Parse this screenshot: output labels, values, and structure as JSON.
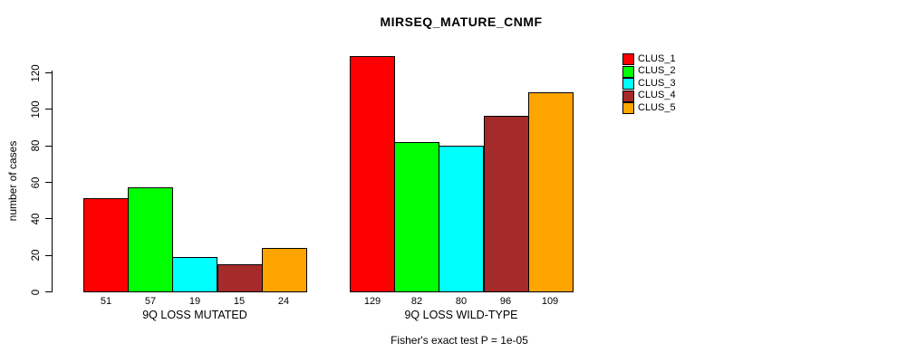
{
  "chart_data": {
    "type": "bar",
    "title": "MIRSEQ_MATURE_CNMF",
    "ylabel": "number of cases",
    "xlabel": "",
    "footer": "Fisher's exact test P = 1e-05",
    "ylim": [
      0,
      130
    ],
    "yticks": [
      0,
      20,
      40,
      60,
      80,
      100,
      120
    ],
    "grid": false,
    "bar_value_labels_shown": true,
    "legend_position": "right",
    "series": [
      {
        "name": "CLUS_1",
        "color": "#FF0000"
      },
      {
        "name": "CLUS_2",
        "color": "#00FF00"
      },
      {
        "name": "CLUS_3",
        "color": "#00FFFF"
      },
      {
        "name": "CLUS_4",
        "color": "#A52A2A"
      },
      {
        "name": "CLUS_5",
        "color": "#FFA500"
      }
    ],
    "groups": [
      {
        "label": "9Q LOSS MUTATED",
        "values": [
          51,
          57,
          19,
          15,
          24
        ]
      },
      {
        "label": "9Q LOSS WILD-TYPE",
        "values": [
          129,
          82,
          80,
          96,
          109
        ]
      }
    ]
  }
}
